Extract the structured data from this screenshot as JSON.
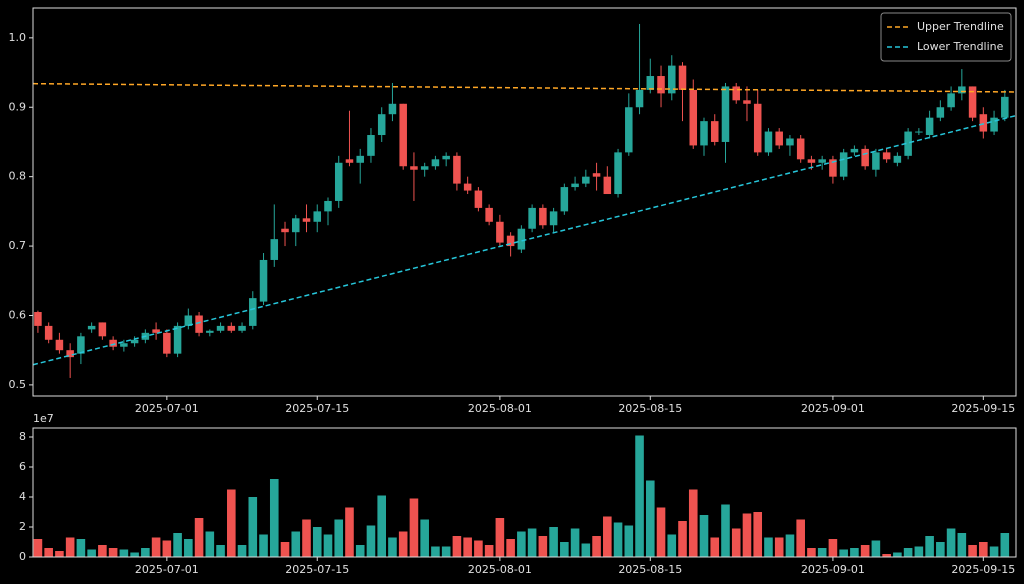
{
  "chart_data": [
    {
      "type": "candlestick",
      "x": [
        "2025-06-19",
        "2025-06-20",
        "2025-06-21",
        "2025-06-22",
        "2025-06-23",
        "2025-06-24",
        "2025-06-25",
        "2025-06-26",
        "2025-06-27",
        "2025-06-28",
        "2025-06-29",
        "2025-06-30",
        "2025-07-01",
        "2025-07-02",
        "2025-07-03",
        "2025-07-04",
        "2025-07-05",
        "2025-07-06",
        "2025-07-07",
        "2025-07-08",
        "2025-07-09",
        "2025-07-10",
        "2025-07-11",
        "2025-07-12",
        "2025-07-13",
        "2025-07-14",
        "2025-07-15",
        "2025-07-16",
        "2025-07-17",
        "2025-07-18",
        "2025-07-19",
        "2025-07-20",
        "2025-07-21",
        "2025-07-22",
        "2025-07-23",
        "2025-07-24",
        "2025-07-25",
        "2025-07-26",
        "2025-07-27",
        "2025-07-28",
        "2025-07-29",
        "2025-07-30",
        "2025-07-31",
        "2025-08-01",
        "2025-08-02",
        "2025-08-03",
        "2025-08-04",
        "2025-08-05",
        "2025-08-06",
        "2025-08-07",
        "2025-08-08",
        "2025-08-09",
        "2025-08-10",
        "2025-08-11",
        "2025-08-12",
        "2025-08-13",
        "2025-08-14",
        "2025-08-15",
        "2025-08-16",
        "2025-08-17",
        "2025-08-18",
        "2025-08-19",
        "2025-08-20",
        "2025-08-21",
        "2025-08-22",
        "2025-08-23",
        "2025-08-24",
        "2025-08-25",
        "2025-08-26",
        "2025-08-27",
        "2025-08-28",
        "2025-08-29",
        "2025-08-30",
        "2025-08-31",
        "2025-09-01",
        "2025-09-02",
        "2025-09-03",
        "2025-09-04",
        "2025-09-05",
        "2025-09-06",
        "2025-09-07",
        "2025-09-08",
        "2025-09-09",
        "2025-09-10",
        "2025-09-11",
        "2025-09-12",
        "2025-09-13",
        "2025-09-14",
        "2025-09-15",
        "2025-09-16",
        "2025-09-17"
      ],
      "open": [
        0.605,
        0.585,
        0.565,
        0.55,
        0.545,
        0.58,
        0.59,
        0.565,
        0.555,
        0.56,
        0.565,
        0.58,
        0.575,
        0.545,
        0.585,
        0.6,
        0.575,
        0.578,
        0.585,
        0.578,
        0.585,
        0.62,
        0.68,
        0.725,
        0.72,
        0.74,
        0.735,
        0.75,
        0.765,
        0.825,
        0.82,
        0.83,
        0.86,
        0.89,
        0.905,
        0.815,
        0.81,
        0.815,
        0.825,
        0.83,
        0.79,
        0.78,
        0.755,
        0.735,
        0.715,
        0.695,
        0.725,
        0.755,
        0.73,
        0.75,
        0.785,
        0.79,
        0.805,
        0.8,
        0.775,
        0.835,
        0.9,
        0.925,
        0.945,
        0.92,
        0.96,
        0.925,
        0.845,
        0.88,
        0.85,
        0.93,
        0.91,
        0.905,
        0.835,
        0.865,
        0.845,
        0.855,
        0.825,
        0.82,
        0.825,
        0.8,
        0.835,
        0.84,
        0.81,
        0.835,
        0.82,
        0.83,
        0.865,
        0.86,
        0.885,
        0.9,
        0.92,
        0.93,
        0.89,
        0.865,
        0.885
      ],
      "high": [
        0.607,
        0.59,
        0.575,
        0.56,
        0.575,
        0.59,
        0.59,
        0.57,
        0.565,
        0.57,
        0.58,
        0.59,
        0.58,
        0.59,
        0.61,
        0.605,
        0.58,
        0.59,
        0.59,
        0.59,
        0.635,
        0.69,
        0.76,
        0.735,
        0.745,
        0.76,
        0.76,
        0.77,
        0.83,
        0.895,
        0.84,
        0.87,
        0.9,
        0.935,
        0.905,
        0.835,
        0.82,
        0.83,
        0.835,
        0.835,
        0.8,
        0.785,
        0.76,
        0.745,
        0.72,
        0.73,
        0.76,
        0.76,
        0.755,
        0.79,
        0.8,
        0.81,
        0.82,
        0.815,
        0.84,
        0.92,
        1.02,
        0.97,
        0.96,
        0.975,
        0.965,
        0.94,
        0.885,
        0.89,
        0.935,
        0.935,
        0.93,
        0.925,
        0.87,
        0.87,
        0.86,
        0.86,
        0.83,
        0.83,
        0.83,
        0.84,
        0.845,
        0.845,
        0.84,
        0.84,
        0.835,
        0.87,
        0.87,
        0.895,
        0.91,
        0.93,
        0.955,
        0.93,
        0.9,
        0.895,
        0.925
      ],
      "low": [
        0.575,
        0.56,
        0.545,
        0.51,
        0.53,
        0.575,
        0.565,
        0.55,
        0.548,
        0.555,
        0.56,
        0.565,
        0.54,
        0.54,
        0.58,
        0.57,
        0.57,
        0.575,
        0.575,
        0.575,
        0.58,
        0.615,
        0.67,
        0.7,
        0.7,
        0.72,
        0.72,
        0.73,
        0.755,
        0.815,
        0.79,
        0.82,
        0.85,
        0.88,
        0.81,
        0.765,
        0.8,
        0.81,
        0.815,
        0.78,
        0.775,
        0.75,
        0.73,
        0.7,
        0.685,
        0.69,
        0.72,
        0.725,
        0.72,
        0.745,
        0.78,
        0.785,
        0.78,
        0.775,
        0.77,
        0.83,
        0.89,
        0.92,
        0.9,
        0.91,
        0.88,
        0.84,
        0.83,
        0.845,
        0.82,
        0.905,
        0.88,
        0.83,
        0.83,
        0.84,
        0.83,
        0.82,
        0.81,
        0.81,
        0.79,
        0.795,
        0.83,
        0.81,
        0.8,
        0.82,
        0.815,
        0.825,
        0.86,
        0.855,
        0.88,
        0.895,
        0.91,
        0.88,
        0.855,
        0.86,
        0.88
      ],
      "close": [
        0.585,
        0.565,
        0.55,
        0.54,
        0.57,
        0.585,
        0.57,
        0.555,
        0.56,
        0.565,
        0.575,
        0.575,
        0.545,
        0.585,
        0.6,
        0.575,
        0.578,
        0.585,
        0.578,
        0.585,
        0.625,
        0.68,
        0.71,
        0.72,
        0.74,
        0.735,
        0.75,
        0.765,
        0.82,
        0.82,
        0.83,
        0.86,
        0.89,
        0.905,
        0.815,
        0.81,
        0.815,
        0.825,
        0.83,
        0.79,
        0.78,
        0.755,
        0.735,
        0.705,
        0.7,
        0.725,
        0.755,
        0.73,
        0.75,
        0.785,
        0.79,
        0.8,
        0.8,
        0.775,
        0.835,
        0.9,
        0.925,
        0.945,
        0.92,
        0.96,
        0.925,
        0.845,
        0.88,
        0.85,
        0.93,
        0.91,
        0.905,
        0.835,
        0.865,
        0.845,
        0.855,
        0.825,
        0.82,
        0.825,
        0.8,
        0.835,
        0.84,
        0.815,
        0.835,
        0.825,
        0.83,
        0.865,
        0.865,
        0.885,
        0.9,
        0.92,
        0.93,
        0.885,
        0.865,
        0.885,
        0.915
      ],
      "up_color": "#26a69a",
      "down_color": "#ef5350",
      "series": [
        {
          "name": "Upper Trendline",
          "color": "#ffa726",
          "x": [
            "2025-06-18T13:00:00Z",
            "2025-09-18T01:00:00Z"
          ],
          "values": [
            0.934,
            0.922
          ]
        },
        {
          "name": "Lower Trendline",
          "color": "#26c6da",
          "x": [
            "2025-06-18T13:00:00Z",
            "2025-09-18T01:00:00Z"
          ],
          "values": [
            0.529,
            0.888
          ]
        }
      ],
      "legend": "upper right",
      "xlim": [
        "2025-06-18T13:00:00Z",
        "2025-09-18T01:00:00Z"
      ],
      "xticks": [
        "2025-07-01",
        "2025-07-15",
        "2025-08-01",
        "2025-08-15",
        "2025-09-01",
        "2025-09-15"
      ],
      "ylim": [
        0.484,
        1.043
      ],
      "yticks": [
        0.5,
        0.6,
        0.7,
        0.8,
        0.9,
        {
          "value": 1,
          "label": "1.0"
        }
      ]
    },
    {
      "type": "bar",
      "x": [
        "2025-06-19",
        "2025-06-20",
        "2025-06-21",
        "2025-06-22",
        "2025-06-23",
        "2025-06-24",
        "2025-06-25",
        "2025-06-26",
        "2025-06-27",
        "2025-06-28",
        "2025-06-29",
        "2025-06-30",
        "2025-07-01",
        "2025-07-02",
        "2025-07-03",
        "2025-07-04",
        "2025-07-05",
        "2025-07-06",
        "2025-07-07",
        "2025-07-08",
        "2025-07-09",
        "2025-07-10",
        "2025-07-11",
        "2025-07-12",
        "2025-07-13",
        "2025-07-14",
        "2025-07-15",
        "2025-07-16",
        "2025-07-17",
        "2025-07-18",
        "2025-07-19",
        "2025-07-20",
        "2025-07-21",
        "2025-07-22",
        "2025-07-23",
        "2025-07-24",
        "2025-07-25",
        "2025-07-26",
        "2025-07-27",
        "2025-07-28",
        "2025-07-29",
        "2025-07-30",
        "2025-07-31",
        "2025-08-01",
        "2025-08-02",
        "2025-08-03",
        "2025-08-04",
        "2025-08-05",
        "2025-08-06",
        "2025-08-07",
        "2025-08-08",
        "2025-08-09",
        "2025-08-10",
        "2025-08-11",
        "2025-08-12",
        "2025-08-13",
        "2025-08-14",
        "2025-08-15",
        "2025-08-16",
        "2025-08-17",
        "2025-08-18",
        "2025-08-19",
        "2025-08-20",
        "2025-08-21",
        "2025-08-22",
        "2025-08-23",
        "2025-08-24",
        "2025-08-25",
        "2025-08-26",
        "2025-08-27",
        "2025-08-28",
        "2025-08-29",
        "2025-08-30",
        "2025-08-31",
        "2025-09-01",
        "2025-09-02",
        "2025-09-03",
        "2025-09-04",
        "2025-09-05",
        "2025-09-06",
        "2025-09-07",
        "2025-09-08",
        "2025-09-09",
        "2025-09-10",
        "2025-09-11",
        "2025-09-12",
        "2025-09-13",
        "2025-09-14",
        "2025-09-15",
        "2025-09-16",
        "2025-09-17"
      ],
      "values": [
        12000000,
        6000000,
        4000000,
        13000000,
        12000000,
        5000000,
        8000000,
        6000000,
        5000000,
        3000000,
        6000000,
        13000000,
        11000000,
        16000000,
        12000000,
        26000000,
        17000000,
        8000000,
        45000000,
        8000000,
        40000000,
        15000000,
        52000000,
        10000000,
        17000000,
        25000000,
        20000000,
        15000000,
        25000000,
        33000000,
        8000000,
        21000000,
        41000000,
        13000000,
        17000000,
        39000000,
        25000000,
        7000000,
        7000000,
        14000000,
        13000000,
        11000000,
        8000000,
        26000000,
        12000000,
        17000000,
        19000000,
        14000000,
        20000000,
        10000000,
        19000000,
        9000000,
        14000000,
        27000000,
        23000000,
        21000000,
        81000000,
        51000000,
        33000000,
        15000000,
        24000000,
        45000000,
        28000000,
        13000000,
        35000000,
        19000000,
        29000000,
        30000000,
        13000000,
        13000000,
        15000000,
        25000000,
        6000000,
        6000000,
        12000000,
        5000000,
        6000000,
        8000000,
        11000000,
        2000000,
        3000000,
        6000000,
        7000000,
        14000000,
        10000000,
        19000000,
        16000000,
        8000000,
        10000000,
        7000000,
        16000000
      ],
      "offset_text": "1e7",
      "xlim": [
        "2025-06-18T13:00:00Z",
        "2025-09-18T01:00:00Z"
      ],
      "xticks": [
        "2025-07-01",
        "2025-07-15",
        "2025-08-01",
        "2025-08-15",
        "2025-09-01",
        "2025-09-15"
      ],
      "ylim": [
        0,
        86000000
      ],
      "yticks": [
        0,
        {
          "value": 20000000,
          "label": "2"
        },
        {
          "value": 40000000,
          "label": "4"
        },
        {
          "value": 60000000,
          "label": "6"
        },
        {
          "value": 80000000,
          "label": "8"
        }
      ]
    }
  ]
}
